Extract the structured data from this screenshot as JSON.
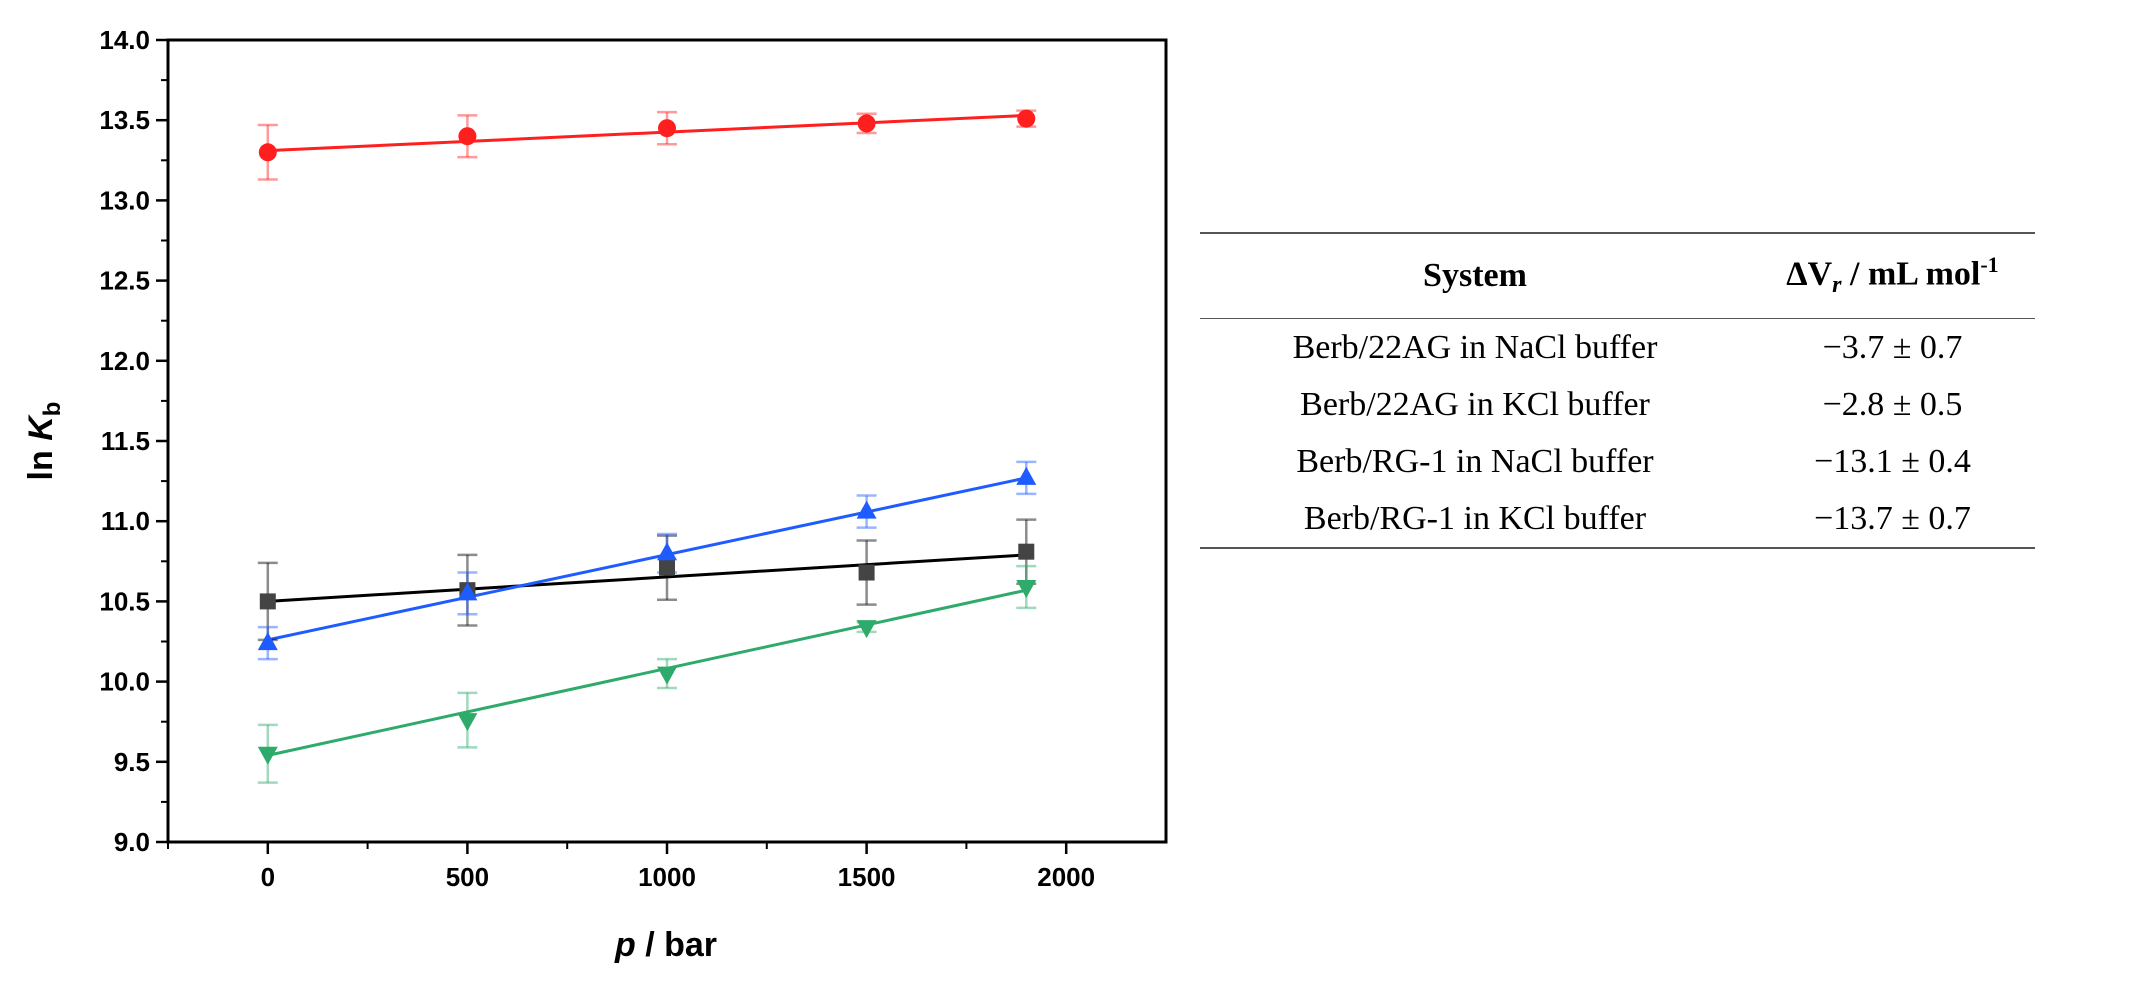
{
  "chart_data": {
    "type": "scatter",
    "xlabel": {
      "symbol": "p",
      "unit": " / bar"
    },
    "ylabel": {
      "prefix": "ln ",
      "symbol": "K",
      "subscript": "b"
    },
    "xlim": [
      -250,
      2250
    ],
    "ylim": [
      9.0,
      14.0
    ],
    "xticks": [
      0,
      500,
      1000,
      1500,
      2000
    ],
    "xtick_labels": [
      "0",
      "500",
      "1000",
      "1500",
      "2000"
    ],
    "yticks": [
      9.0,
      9.5,
      10.0,
      10.5,
      11.0,
      11.5,
      12.0,
      12.5,
      13.0,
      13.5,
      14.0
    ],
    "ytick_labels": [
      "9.0",
      "9.5",
      "10.0",
      "10.5",
      "11.0",
      "11.5",
      "12.0",
      "12.5",
      "13.0",
      "13.5",
      "14.0"
    ],
    "series": [
      {
        "name": "Berb/22AG in NaCl buffer",
        "color": "#000000",
        "marker": "square",
        "x": [
          0,
          500,
          1000,
          1500,
          1900
        ],
        "y": [
          10.5,
          10.57,
          10.71,
          10.68,
          10.81
        ],
        "yerr": [
          0.24,
          0.22,
          0.2,
          0.2,
          0.2
        ],
        "fit": {
          "x": [
            0,
            1900
          ],
          "y": [
            10.5,
            10.79
          ]
        }
      },
      {
        "name": "Berb/22AG in KCl buffer",
        "color": "#ff1f1f",
        "marker": "circle",
        "x": [
          0,
          500,
          1000,
          1500,
          1900
        ],
        "y": [
          13.3,
          13.4,
          13.45,
          13.48,
          13.51
        ],
        "yerr": [
          0.17,
          0.13,
          0.1,
          0.06,
          0.05
        ],
        "fit": {
          "x": [
            0,
            1900
          ],
          "y": [
            13.31,
            13.53
          ]
        }
      },
      {
        "name": "Berb/RG-1 in NaCl buffer",
        "color": "#1f5cff",
        "marker": "triangle-up",
        "x": [
          0,
          500,
          1000,
          1500,
          1900
        ],
        "y": [
          10.24,
          10.55,
          10.8,
          11.06,
          11.27
        ],
        "yerr": [
          0.1,
          0.13,
          0.12,
          0.1,
          0.1
        ],
        "fit": {
          "x": [
            0,
            1900
          ],
          "y": [
            10.26,
            11.27
          ]
        }
      },
      {
        "name": "Berb/RG-1 in KCl buffer",
        "color": "#2eaa6a",
        "marker": "triangle-down",
        "x": [
          0,
          500,
          1000,
          1500,
          1900
        ],
        "y": [
          9.55,
          9.76,
          10.05,
          10.34,
          10.59
        ],
        "yerr": [
          0.18,
          0.17,
          0.09,
          0.03,
          0.13
        ],
        "fit": {
          "x": [
            0,
            1900
          ],
          "y": [
            9.54,
            10.57
          ]
        }
      }
    ]
  },
  "table": {
    "header": {
      "system": "System",
      "dv_delta": "ΔV",
      "dv_sub": "r",
      "dv_unit": " / mL mol",
      "dv_exp": "-1"
    },
    "rows": [
      {
        "system": "Berb/22AG in NaCl buffer",
        "value": "−3.7 ± 0.7"
      },
      {
        "system": "Berb/22AG in KCl buffer",
        "value": "−2.8 ± 0.5"
      },
      {
        "system": "Berb/RG-1 in NaCl buffer",
        "value": "−13.1 ± 0.4"
      },
      {
        "system": "Berb/RG-1 in KCl buffer",
        "value": "−13.7 ± 0.7"
      }
    ]
  }
}
